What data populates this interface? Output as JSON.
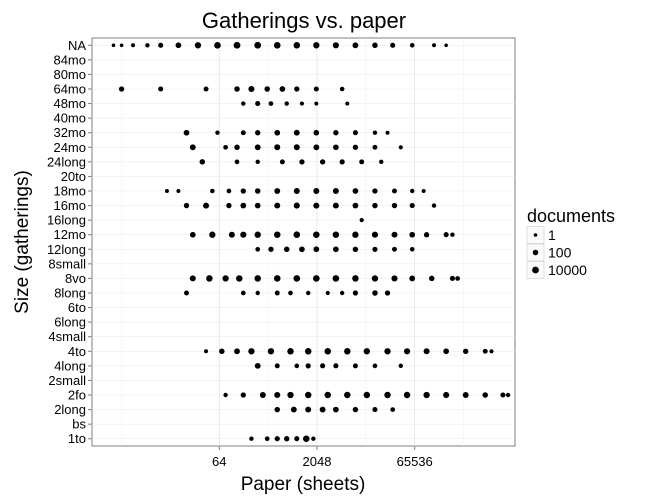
{
  "chart_data": {
    "type": "scatter",
    "title": "Gatherings vs. paper",
    "xlabel": "Paper (sheets)",
    "ylabel": "Size (gatherings)",
    "x_scale": "log2",
    "x_ticks": [
      64,
      2048,
      65536
    ],
    "x_tick_labels": [
      "64",
      "2048",
      "65536"
    ],
    "xlim": [
      0.7,
      2300000
    ],
    "y_categories": [
      "1to",
      "bs",
      "2long",
      "2fo",
      "2small",
      "4long",
      "4to",
      "4small",
      "6long",
      "6to",
      "8long",
      "8vo",
      "8small",
      "12long",
      "12mo",
      "16long",
      "16mo",
      "18mo",
      "20to",
      "24long",
      "24mo",
      "32mo",
      "40mo",
      "48mo",
      "64mo",
      "80mo",
      "84mo",
      "NA"
    ],
    "grid": true,
    "legend": {
      "title": "documents",
      "position": "right",
      "entries": [
        {
          "label": "1",
          "value": 1
        },
        {
          "label": "100",
          "value": 100
        },
        {
          "label": "10000",
          "value": 10000
        }
      ]
    },
    "series": [
      {
        "category": "NA",
        "points": [
          [
            1.5,
            1
          ],
          [
            2,
            1
          ],
          [
            3,
            2
          ],
          [
            5,
            5
          ],
          [
            8,
            30
          ],
          [
            15,
            200
          ],
          [
            30,
            1500
          ],
          [
            60,
            5000
          ],
          [
            120,
            9000
          ],
          [
            250,
            7000
          ],
          [
            500,
            5000
          ],
          [
            1000,
            3000
          ],
          [
            2000,
            1500
          ],
          [
            4000,
            700
          ],
          [
            8000,
            300
          ],
          [
            16000,
            100
          ],
          [
            30000,
            30
          ],
          [
            60000,
            8
          ],
          [
            130000,
            2
          ],
          [
            200000,
            1
          ]
        ]
      },
      {
        "category": "64mo",
        "points": [
          [
            2,
            60
          ],
          [
            8,
            30
          ],
          [
            40,
            20
          ],
          [
            120,
            100
          ],
          [
            200,
            600
          ],
          [
            350,
            100
          ],
          [
            600,
            200
          ],
          [
            1000,
            50
          ],
          [
            2000,
            30
          ],
          [
            5000,
            8
          ]
        ]
      },
      {
        "category": "48mo",
        "points": [
          [
            150,
            5
          ],
          [
            250,
            30
          ],
          [
            400,
            10
          ],
          [
            700,
            5
          ],
          [
            1200,
            3
          ],
          [
            2000,
            2
          ],
          [
            6000,
            2
          ]
        ]
      },
      {
        "category": "32mo",
        "points": [
          [
            20,
            200
          ],
          [
            60,
            5
          ],
          [
            150,
            20
          ],
          [
            250,
            60
          ],
          [
            500,
            200
          ],
          [
            1000,
            300
          ],
          [
            2000,
            150
          ],
          [
            4000,
            60
          ],
          [
            8000,
            30
          ],
          [
            16000,
            5
          ],
          [
            25000,
            2
          ]
        ]
      },
      {
        "category": "24mo",
        "points": [
          [
            25,
            300
          ],
          [
            80,
            10
          ],
          [
            120,
            100
          ],
          [
            250,
            300
          ],
          [
            500,
            500
          ],
          [
            1000,
            500
          ],
          [
            2000,
            300
          ],
          [
            4000,
            150
          ],
          [
            8000,
            60
          ],
          [
            16000,
            20
          ],
          [
            40000,
            3
          ]
        ]
      },
      {
        "category": "24long",
        "points": [
          [
            35,
            100
          ],
          [
            120,
            10
          ],
          [
            250,
            5
          ],
          [
            600,
            20
          ],
          [
            1200,
            50
          ],
          [
            2500,
            60
          ],
          [
            5000,
            40
          ],
          [
            10000,
            20
          ],
          [
            20000,
            5
          ]
        ]
      },
      {
        "category": "18mo",
        "points": [
          [
            10,
            2
          ],
          [
            15,
            2
          ],
          [
            50,
            8
          ],
          [
            90,
            10
          ],
          [
            150,
            50
          ],
          [
            250,
            100
          ],
          [
            500,
            300
          ],
          [
            1000,
            500
          ],
          [
            2000,
            500
          ],
          [
            4000,
            400
          ],
          [
            8000,
            200
          ],
          [
            16000,
            60
          ],
          [
            32000,
            20
          ],
          [
            60000,
            5
          ],
          [
            90000,
            2
          ]
        ]
      },
      {
        "category": "16mo",
        "points": [
          [
            20,
            60
          ],
          [
            40,
            500
          ],
          [
            90,
            60
          ],
          [
            150,
            200
          ],
          [
            250,
            150
          ],
          [
            500,
            400
          ],
          [
            1000,
            600
          ],
          [
            2000,
            500
          ],
          [
            4000,
            400
          ],
          [
            8000,
            200
          ],
          [
            16000,
            100
          ],
          [
            32000,
            60
          ],
          [
            60000,
            30
          ],
          [
            130000,
            5
          ]
        ]
      },
      {
        "category": "16long",
        "points": [
          [
            10000,
            3
          ]
        ]
      },
      {
        "category": "12mo",
        "points": [
          [
            25,
            200
          ],
          [
            50,
            1500
          ],
          [
            100,
            500
          ],
          [
            150,
            1000
          ],
          [
            250,
            2000
          ],
          [
            500,
            3000
          ],
          [
            1000,
            4000
          ],
          [
            2000,
            3000
          ],
          [
            4000,
            2500
          ],
          [
            8000,
            1500
          ],
          [
            16000,
            800
          ],
          [
            32000,
            400
          ],
          [
            60000,
            150
          ],
          [
            100000,
            60
          ],
          [
            200000,
            30
          ],
          [
            250000,
            5
          ]
        ]
      },
      {
        "category": "12long",
        "points": [
          [
            250,
            10
          ],
          [
            400,
            50
          ],
          [
            700,
            100
          ],
          [
            1200,
            150
          ],
          [
            2000,
            200
          ],
          [
            4000,
            150
          ],
          [
            8000,
            80
          ],
          [
            16000,
            40
          ],
          [
            32000,
            20
          ],
          [
            60000,
            8
          ]
        ]
      },
      {
        "category": "8vo",
        "points": [
          [
            25,
            500
          ],
          [
            45,
            3000
          ],
          [
            80,
            1500
          ],
          [
            130,
            2500
          ],
          [
            250,
            3000
          ],
          [
            500,
            4000
          ],
          [
            1000,
            5000
          ],
          [
            2000,
            6000
          ],
          [
            4000,
            5000
          ],
          [
            8000,
            3000
          ],
          [
            16000,
            1500
          ],
          [
            32000,
            800
          ],
          [
            60000,
            300
          ],
          [
            120000,
            100
          ],
          [
            250000,
            30
          ],
          [
            300000,
            10
          ]
        ]
      },
      {
        "category": "8long",
        "points": [
          [
            20,
            20
          ],
          [
            150,
            10
          ],
          [
            250,
            5
          ],
          [
            500,
            20
          ],
          [
            800,
            10
          ],
          [
            1500,
            5
          ],
          [
            3000,
            3
          ],
          [
            5000,
            5
          ],
          [
            8000,
            40
          ],
          [
            16000,
            100
          ],
          [
            25000,
            50
          ]
        ]
      },
      {
        "category": "4to",
        "points": [
          [
            40,
            2
          ],
          [
            70,
            100
          ],
          [
            120,
            300
          ],
          [
            200,
            1500
          ],
          [
            400,
            2000
          ],
          [
            800,
            2500
          ],
          [
            1500,
            3000
          ],
          [
            3000,
            3000
          ],
          [
            6000,
            2500
          ],
          [
            12000,
            2000
          ],
          [
            25000,
            1500
          ],
          [
            50000,
            1000
          ],
          [
            100000,
            500
          ],
          [
            200000,
            200
          ],
          [
            400000,
            80
          ],
          [
            800000,
            20
          ],
          [
            1000000,
            3
          ]
        ]
      },
      {
        "category": "4long",
        "points": [
          [
            250,
            300
          ],
          [
            500,
            20
          ],
          [
            1000,
            10
          ],
          [
            1500,
            40
          ],
          [
            2500,
            30
          ],
          [
            4000,
            30
          ],
          [
            8000,
            20
          ],
          [
            16000,
            10
          ],
          [
            40000,
            5
          ]
        ]
      },
      {
        "category": "2fo",
        "points": [
          [
            80,
            5
          ],
          [
            150,
            50
          ],
          [
            300,
            400
          ],
          [
            500,
            700
          ],
          [
            800,
            1500
          ],
          [
            1500,
            2500
          ],
          [
            3000,
            3000
          ],
          [
            6000,
            3000
          ],
          [
            12000,
            2500
          ],
          [
            25000,
            2500
          ],
          [
            50000,
            2000
          ],
          [
            100000,
            1500
          ],
          [
            200000,
            800
          ],
          [
            400000,
            400
          ],
          [
            800000,
            100
          ],
          [
            1500000,
            30
          ],
          [
            1800000,
            5
          ]
        ]
      },
      {
        "category": "2long",
        "points": [
          [
            500,
            100
          ],
          [
            900,
            300
          ],
          [
            1500,
            400
          ],
          [
            2500,
            300
          ],
          [
            4000,
            200
          ],
          [
            8000,
            80
          ],
          [
            16000,
            30
          ],
          [
            30000,
            10
          ]
        ]
      },
      {
        "category": "1to",
        "points": [
          [
            200,
            5
          ],
          [
            350,
            10
          ],
          [
            500,
            40
          ],
          [
            700,
            60
          ],
          [
            1000,
            30
          ],
          [
            1400,
            3000
          ],
          [
            1800,
            5
          ]
        ]
      }
    ]
  }
}
